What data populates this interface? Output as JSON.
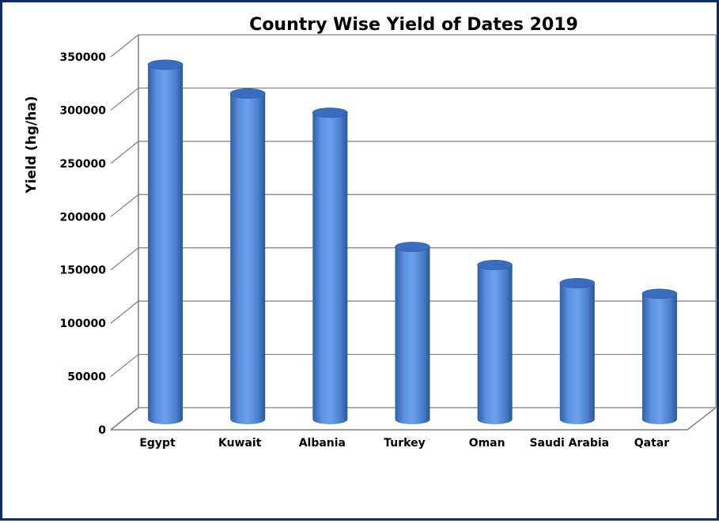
{
  "chart_data": {
    "type": "bar",
    "style": "3d-cylinder",
    "title": "Country Wise Yield of Dates 2019",
    "xlabel": "",
    "ylabel": "Yield (hg/ha)",
    "categories": [
      "Egypt",
      "Kuwait",
      "Albania",
      "Turkey",
      "Oman",
      "Saudi Arabia",
      "Qatar"
    ],
    "series": [
      {
        "values": [
          333000,
          306000,
          288000,
          162000,
          145000,
          128000,
          118000
        ]
      }
    ],
    "yticks": [
      "0",
      "50000",
      "100000",
      "150000",
      "200000",
      "250000",
      "300000",
      "350000"
    ],
    "ylim": [
      0,
      350000
    ],
    "grid": true,
    "legend": "none",
    "colors": {
      "bar_main": "#4f86d6",
      "bar_dark": "#2f5fa8",
      "bar_light": "#7aaef0",
      "bar_top": "#3a6cbf",
      "grid": "#7f7f7f",
      "border": "#0b2a66"
    }
  }
}
